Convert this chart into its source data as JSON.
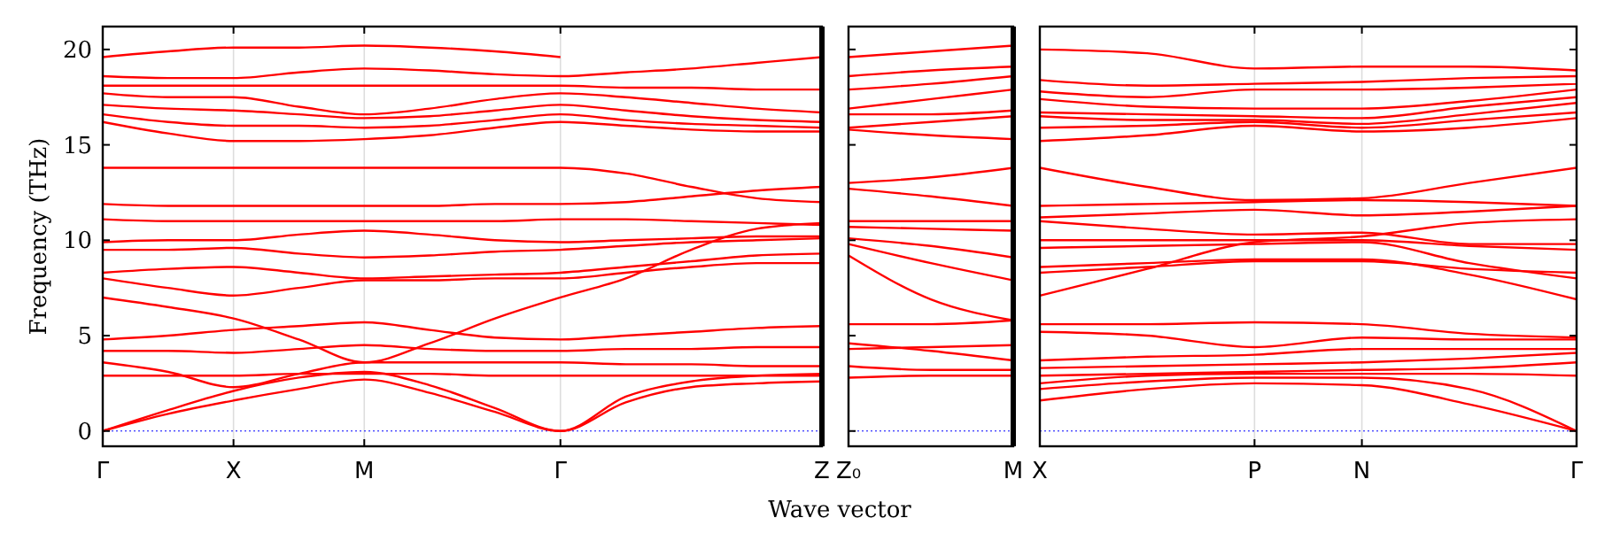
{
  "chart_data": [
    {
      "type": "line",
      "ylabel": "Frequency (THz)",
      "ylim": [
        -0.8,
        21.2
      ],
      "yticks": [
        0,
        5,
        10,
        15,
        20
      ],
      "categories": [
        "Γ",
        null,
        "X",
        null,
        "M",
        null,
        null,
        "Γ",
        null,
        null,
        null,
        "Z"
      ],
      "grid": "x",
      "ref_lines": [
        {
          "axis": "y",
          "value": 0,
          "color": "#0000ff",
          "line_style": "dotted"
        }
      ],
      "series": [
        {
          "color": "#ff0000",
          "values": [
            0,
            0.9,
            1.6,
            2.2,
            2.7,
            2.0,
            1.0,
            0,
            1.5,
            2.3,
            2.5,
            2.6
          ]
        },
        {
          "color": "#ff0000",
          "values": [
            0,
            1.1,
            2.1,
            2.8,
            3.1,
            2.4,
            1.2,
            0,
            1.8,
            2.6,
            2.9,
            3.0
          ]
        },
        {
          "color": "#ff0000",
          "values": [
            2.9,
            2.9,
            2.9,
            3.0,
            3.0,
            3.0,
            2.9,
            2.9,
            2.9,
            2.9,
            2.9,
            2.9
          ]
        },
        {
          "color": "#ff0000",
          "values": [
            3.6,
            3.1,
            2.3,
            3.0,
            3.6,
            3.6,
            3.6,
            3.6,
            3.5,
            3.5,
            3.4,
            3.4
          ]
        },
        {
          "color": "#ff0000",
          "values": [
            4.2,
            4.2,
            4.1,
            4.3,
            4.5,
            4.3,
            4.2,
            4.2,
            4.3,
            4.3,
            4.4,
            4.4
          ]
        },
        {
          "color": "#ff0000",
          "values": [
            4.8,
            5.0,
            5.3,
            5.5,
            5.7,
            5.3,
            4.9,
            4.8,
            5.0,
            5.2,
            5.4,
            5.5
          ]
        },
        {
          "color": "#ff0000",
          "values": [
            7.0,
            6.5,
            5.9,
            4.8,
            3.6,
            4.6,
            5.9,
            7.0,
            8.0,
            9.5,
            10.6,
            10.9
          ]
        },
        {
          "color": "#ff0000",
          "values": [
            8.0,
            7.5,
            7.1,
            7.5,
            7.9,
            7.9,
            8.0,
            8.0,
            8.3,
            8.6,
            8.8,
            8.8
          ]
        },
        {
          "color": "#ff0000",
          "values": [
            8.3,
            8.5,
            8.6,
            8.3,
            8.0,
            8.1,
            8.2,
            8.3,
            8.6,
            8.9,
            9.2,
            9.3
          ]
        },
        {
          "color": "#ff0000",
          "values": [
            9.5,
            9.5,
            9.6,
            9.3,
            9.1,
            9.2,
            9.4,
            9.5,
            9.7,
            9.9,
            10.0,
            10.1
          ]
        },
        {
          "color": "#ff0000",
          "values": [
            9.9,
            10.0,
            10.0,
            10.3,
            10.5,
            10.3,
            10.0,
            9.9,
            10.0,
            10.1,
            10.2,
            10.2
          ]
        },
        {
          "color": "#ff0000",
          "values": [
            11.1,
            11.0,
            11.0,
            11.0,
            11.0,
            11.0,
            11.0,
            11.1,
            11.1,
            11.0,
            10.9,
            10.8
          ]
        },
        {
          "color": "#ff0000",
          "values": [
            11.9,
            11.8,
            11.8,
            11.8,
            11.8,
            11.8,
            11.9,
            11.9,
            12.0,
            12.3,
            12.6,
            12.8
          ]
        },
        {
          "color": "#ff0000",
          "values": [
            13.8,
            13.8,
            13.8,
            13.8,
            13.8,
            13.8,
            13.8,
            13.8,
            13.5,
            12.8,
            12.2,
            12.0
          ]
        },
        {
          "color": "#ff0000",
          "values": [
            16.2,
            15.6,
            15.2,
            15.2,
            15.3,
            15.5,
            15.9,
            16.2,
            16.0,
            15.8,
            15.7,
            15.7
          ]
        },
        {
          "color": "#ff0000",
          "values": [
            16.6,
            16.2,
            16.0,
            16.0,
            15.9,
            16.0,
            16.3,
            16.6,
            16.3,
            16.1,
            16.0,
            15.9
          ]
        },
        {
          "color": "#ff0000",
          "values": [
            17.1,
            16.9,
            16.8,
            16.6,
            16.4,
            16.5,
            16.8,
            17.1,
            16.8,
            16.5,
            16.3,
            16.2
          ]
        },
        {
          "color": "#ff0000",
          "values": [
            17.7,
            17.5,
            17.5,
            17.0,
            16.6,
            16.9,
            17.4,
            17.7,
            17.5,
            17.2,
            16.9,
            16.7
          ]
        },
        {
          "color": "#ff0000",
          "values": [
            18.1,
            18.1,
            18.1,
            18.1,
            18.1,
            18.1,
            18.1,
            18.1,
            18.0,
            18.0,
            17.9,
            17.9
          ]
        },
        {
          "color": "#ff0000",
          "values": [
            18.6,
            18.5,
            18.5,
            18.8,
            19.0,
            18.9,
            18.7,
            18.6,
            18.8,
            19.0,
            19.3,
            19.6
          ]
        },
        {
          "color": "#ff0000",
          "values": [
            19.6,
            19.9,
            20.1,
            20.1,
            20.2,
            20.1,
            19.9,
            19.6,
            null,
            null,
            null,
            null
          ]
        }
      ]
    },
    {
      "type": "line",
      "xlabel": "Wave vector",
      "tick_labels": "x",
      "ylim": [
        -0.8,
        21.2
      ],
      "yticks": [
        0,
        5,
        10,
        15,
        20
      ],
      "categories": [
        "Z₀",
        null,
        "M"
      ],
      "ref_lines": [
        {
          "axis": "y",
          "value": 0,
          "color": "#0000ff",
          "line_style": "dotted"
        }
      ],
      "series": [
        {
          "color": "#ff0000",
          "values": [
            2.8,
            2.9,
            2.9
          ]
        },
        {
          "color": "#ff0000",
          "values": [
            3.4,
            3.2,
            3.2
          ]
        },
        {
          "color": "#ff0000",
          "values": [
            4.3,
            4.4,
            4.5
          ]
        },
        {
          "color": "#ff0000",
          "values": [
            4.6,
            4.2,
            3.7
          ]
        },
        {
          "color": "#ff0000",
          "values": [
            5.6,
            5.6,
            5.8
          ]
        },
        {
          "color": "#ff0000",
          "values": [
            9.2,
            6.9,
            5.8
          ]
        },
        {
          "color": "#ff0000",
          "values": [
            9.8,
            8.8,
            7.9
          ]
        },
        {
          "color": "#ff0000",
          "values": [
            10.1,
            9.7,
            9.1
          ]
        },
        {
          "color": "#ff0000",
          "values": [
            10.7,
            10.6,
            10.5
          ]
        },
        {
          "color": "#ff0000",
          "values": [
            11.0,
            11.0,
            11.0
          ]
        },
        {
          "color": "#ff0000",
          "values": [
            12.7,
            12.3,
            11.8
          ]
        },
        {
          "color": "#ff0000",
          "values": [
            13.0,
            13.3,
            13.8
          ]
        },
        {
          "color": "#ff0000",
          "values": [
            15.8,
            15.5,
            15.3
          ]
        },
        {
          "color": "#ff0000",
          "values": [
            15.9,
            16.2,
            16.5
          ]
        },
        {
          "color": "#ff0000",
          "values": [
            16.6,
            16.6,
            16.8
          ]
        },
        {
          "color": "#ff0000",
          "values": [
            16.9,
            17.4,
            17.9
          ]
        },
        {
          "color": "#ff0000",
          "values": [
            17.9,
            18.2,
            18.6
          ]
        },
        {
          "color": "#ff0000",
          "values": [
            18.6,
            18.9,
            19.1
          ]
        },
        {
          "color": "#ff0000",
          "values": [
            19.6,
            19.9,
            20.2
          ]
        }
      ]
    },
    {
      "type": "line",
      "tick_labels": "x",
      "ylim": [
        -0.8,
        21.2
      ],
      "yticks": [
        0,
        5,
        10,
        15,
        20
      ],
      "categories": [
        "X",
        null,
        "P",
        "N",
        null,
        "Γ"
      ],
      "grid": "x",
      "ref_lines": [
        {
          "axis": "y",
          "value": 0,
          "color": "#0000ff",
          "line_style": "dotted"
        }
      ],
      "series": [
        {
          "color": "#ff0000",
          "values": [
            1.6,
            2.2,
            2.5,
            2.4,
            1.4,
            0
          ]
        },
        {
          "color": "#ff0000",
          "values": [
            2.2,
            2.6,
            2.8,
            2.8,
            2.2,
            0
          ]
        },
        {
          "color": "#ff0000",
          "values": [
            2.5,
            2.9,
            3.0,
            3.0,
            3.0,
            2.9
          ]
        },
        {
          "color": "#ff0000",
          "values": [
            2.9,
            3.0,
            3.1,
            3.2,
            3.3,
            3.6
          ]
        },
        {
          "color": "#ff0000",
          "values": [
            3.3,
            3.4,
            3.5,
            3.6,
            3.8,
            4.1
          ]
        },
        {
          "color": "#ff0000",
          "values": [
            3.7,
            3.9,
            4.0,
            4.3,
            4.3,
            4.3
          ]
        },
        {
          "color": "#ff0000",
          "values": [
            5.2,
            5.0,
            4.4,
            4.9,
            4.8,
            4.8
          ]
        },
        {
          "color": "#ff0000",
          "values": [
            5.6,
            5.6,
            5.7,
            5.6,
            5.1,
            4.9
          ]
        },
        {
          "color": "#ff0000",
          "values": [
            7.1,
            8.5,
            9.9,
            10.2,
            10.9,
            11.1
          ]
        },
        {
          "color": "#ff0000",
          "values": [
            8.3,
            8.6,
            8.9,
            8.9,
            8.5,
            8.3
          ]
        },
        {
          "color": "#ff0000",
          "values": [
            8.6,
            8.8,
            9.0,
            9.0,
            8.2,
            6.9
          ]
        },
        {
          "color": "#ff0000",
          "values": [
            9.6,
            9.7,
            9.8,
            9.9,
            8.8,
            8.0
          ]
        },
        {
          "color": "#ff0000",
          "values": [
            10.0,
            10.0,
            10.0,
            10.0,
            9.7,
            9.5
          ]
        },
        {
          "color": "#ff0000",
          "values": [
            11.0,
            10.6,
            10.3,
            10.4,
            9.8,
            9.8
          ]
        },
        {
          "color": "#ff0000",
          "values": [
            11.2,
            11.4,
            11.6,
            11.3,
            11.5,
            11.8
          ]
        },
        {
          "color": "#ff0000",
          "values": [
            11.8,
            11.9,
            12.0,
            12.1,
            12.0,
            11.8
          ]
        },
        {
          "color": "#ff0000",
          "values": [
            13.8,
            12.8,
            12.1,
            12.2,
            13.0,
            13.8
          ]
        },
        {
          "color": "#ff0000",
          "values": [
            15.2,
            15.5,
            16.0,
            15.7,
            15.9,
            16.4
          ]
        },
        {
          "color": "#ff0000",
          "values": [
            15.9,
            16.0,
            16.2,
            15.9,
            16.3,
            16.7
          ]
        },
        {
          "color": "#ff0000",
          "values": [
            16.5,
            16.3,
            16.3,
            16.1,
            16.6,
            17.2
          ]
        },
        {
          "color": "#ff0000",
          "values": [
            16.7,
            16.6,
            16.5,
            16.4,
            17.0,
            17.5
          ]
        },
        {
          "color": "#ff0000",
          "values": [
            17.4,
            17.0,
            16.9,
            16.9,
            17.3,
            17.9
          ]
        },
        {
          "color": "#ff0000",
          "values": [
            17.8,
            17.5,
            17.9,
            17.9,
            18.0,
            18.2
          ]
        },
        {
          "color": "#ff0000",
          "values": [
            18.4,
            18.1,
            18.2,
            18.3,
            18.5,
            18.6
          ]
        },
        {
          "color": "#ff0000",
          "values": [
            20.0,
            19.8,
            19.0,
            19.1,
            19.1,
            18.9
          ]
        }
      ]
    }
  ]
}
